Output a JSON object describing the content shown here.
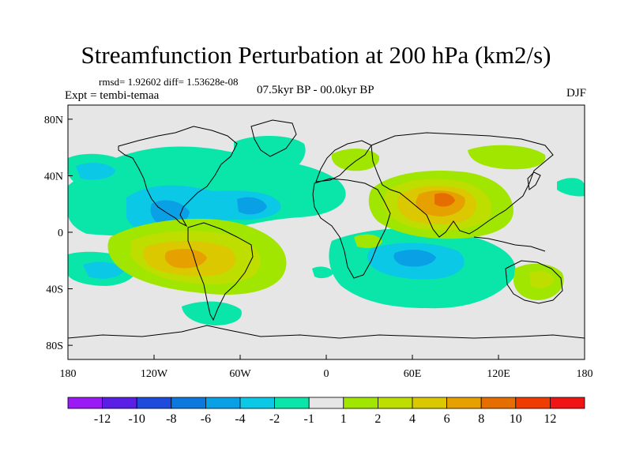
{
  "title": "Streamfunction Perturbation at 200 hPa (km2/s)",
  "stats_text": "rmsd= 1.92602 diff= 1.53628e-08",
  "expt_text": "Expt = tembi-temaa",
  "period_text": "07.5kyr BP - 00.0kyr BP",
  "season_text": "DJF",
  "map": {
    "lon_range": [
      -180,
      180
    ],
    "lat_range": [
      -90,
      90
    ],
    "x_ticks": [
      "180",
      "120W",
      "60W",
      "0",
      "60E",
      "120E",
      "180"
    ],
    "y_ticks": [
      "80N",
      "40N",
      "0",
      "40S",
      "80S"
    ],
    "background_color": "#e6e6e6"
  },
  "colorbar": {
    "labels": [
      "-12",
      "-10",
      "-8",
      "-6",
      "-4",
      "-2",
      "-1",
      "1",
      "2",
      "4",
      "6",
      "8",
      "10",
      "12"
    ],
    "colors": [
      "#9b19f5",
      "#5a1ee6",
      "#1e4bdc",
      "#0a78dc",
      "#0aa0e6",
      "#0ac8e6",
      "#0ae6aa",
      "#e6e6e6",
      "#a0e600",
      "#bede00",
      "#dcc800",
      "#e6a000",
      "#e66e00",
      "#f03c00",
      "#f01414"
    ]
  },
  "field_colors": {
    "neg1": "#0ae6aa",
    "neg2": "#0ac8e6",
    "neg3": "#0aa0e6",
    "pos1": "#a0e600",
    "pos2": "#bede00",
    "pos3": "#dcc800",
    "pos4": "#e6a000",
    "pos5": "#e66e00"
  }
}
